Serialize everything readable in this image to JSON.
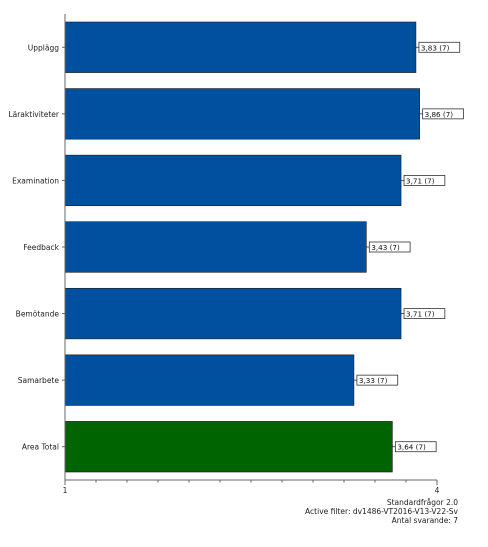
{
  "chart_data": {
    "type": "bar",
    "orientation": "horizontal",
    "categories": [
      "Upplägg",
      "Läraktiviteter",
      "Examination",
      "Feedback",
      "Bemötande",
      "Samarbete",
      "Area Total"
    ],
    "values": [
      3.83,
      3.86,
      3.71,
      3.43,
      3.71,
      3.33,
      3.64
    ],
    "data_labels": [
      "3,83 (7)",
      "3,86 (7)",
      "3,71 (7)",
      "3,43 (7)",
      "3,71 (7)",
      "3,33 (7)",
      "3,64 (7)"
    ],
    "bar_colors": [
      "#0050a0",
      "#0050a0",
      "#0050a0",
      "#0050a0",
      "#0050a0",
      "#0050a0",
      "#006400"
    ],
    "xlim": [
      1,
      4
    ],
    "x_ticks": [
      "1",
      "4"
    ],
    "grid": false,
    "title": "",
    "xlabel": "",
    "ylabel": ""
  },
  "footer": {
    "line1": "Standardfrågor 2.0",
    "line2": "Active filter: dv1486-VT2016-V13-V22-Sv",
    "line3": "Antal svarande: 7"
  }
}
